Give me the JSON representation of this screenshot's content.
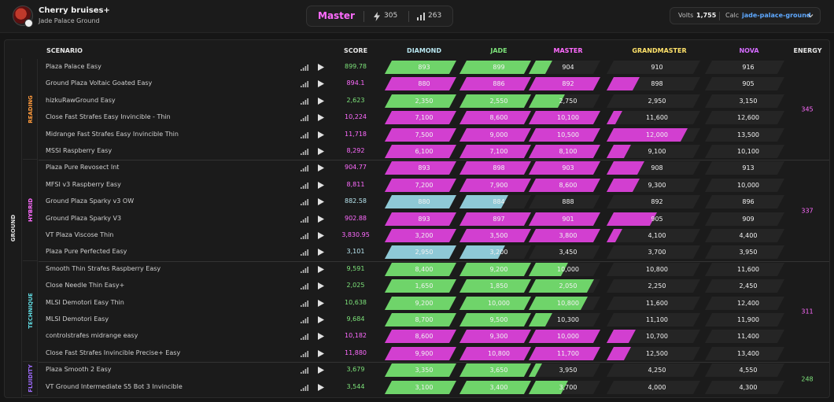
{
  "header": {
    "user_name": "Cherry bruises+",
    "user_sub": "Jade Palace Ground",
    "rank": "Master",
    "energy": "305",
    "count": "263",
    "volts_label": "Volts",
    "volts_value": "1,755",
    "calc_label": "Calc",
    "calc_value": "jade-palace-ground"
  },
  "columns": {
    "scenario": "SCENARIO",
    "score": "SCORE",
    "diamond": "DIAMOND",
    "jade": "JADE",
    "master": "MASTER",
    "grandmaster": "GRANDMASTER",
    "nova": "NOVA",
    "energy": "ENERGY"
  },
  "colors": {
    "diamond": "#b8e6f0",
    "jade": "#7de37a",
    "master": "#ff6bff",
    "grandmaster": "#ffe26a",
    "nova": "#d56cff",
    "bar_green": "#6fd46a",
    "bar_magenta": "#d23fd0",
    "bar_blue": "#8ec9d6"
  },
  "outer_category": "GROUND",
  "groups": [
    {
      "label": "READING",
      "color": "#ff9a3c",
      "energy": "345",
      "energy_color": "#ff6bff",
      "rows": [
        {
          "name": "Plaza Palace Easy",
          "score": "899.78",
          "score_color": "#7de37a",
          "thresholds": [
            "893",
            "899",
            "904",
            "910",
            "916"
          ],
          "bar_color": "green",
          "progress": 2.25
        },
        {
          "name": "Ground Plaza Voltaic Goated Easy",
          "score": "894.1",
          "score_color": "#ff6bff",
          "thresholds": [
            "880",
            "886",
            "892",
            "898",
            "905"
          ],
          "bar_color": "magenta",
          "progress": 3.3
        },
        {
          "name": "hizkuRawGround Easy",
          "score": "2,623",
          "score_color": "#7de37a",
          "thresholds": [
            "2,350",
            "2,550",
            "2,750",
            "2,950",
            "3,150"
          ],
          "bar_color": "green",
          "progress": 2.45
        },
        {
          "name": "Close Fast Strafes Easy Invincible - Thin",
          "score": "10,224",
          "score_color": "#ff6bff",
          "thresholds": [
            "7,100",
            "8,600",
            "10,100",
            "11,600",
            "12,600"
          ],
          "bar_color": "magenta",
          "progress": 3.1
        },
        {
          "name": "Midrange Fast Strafes Easy Invincible Thin",
          "score": "11,718",
          "score_color": "#ff6bff",
          "thresholds": [
            "7,500",
            "9,000",
            "10,500",
            "12,000",
            "13,500"
          ],
          "bar_color": "magenta",
          "progress": 3.85
        },
        {
          "name": "MSSI Raspberry Easy",
          "score": "8,292",
          "score_color": "#ff6bff",
          "thresholds": [
            "6,100",
            "7,100",
            "8,100",
            "9,100",
            "10,100"
          ],
          "bar_color": "magenta",
          "progress": 3.2
        }
      ]
    },
    {
      "label": "HYBRID",
      "color": "#ff6bff",
      "energy": "337",
      "energy_color": "#ff6bff",
      "rows": [
        {
          "name": "Plaza Pure Revosect Int",
          "score": "904.77",
          "score_color": "#ff6bff",
          "thresholds": [
            "893",
            "898",
            "903",
            "908",
            "913"
          ],
          "bar_color": "magenta",
          "progress": 3.35
        },
        {
          "name": "MFSI v3 Raspberry Easy",
          "score": "8,811",
          "score_color": "#ff6bff",
          "thresholds": [
            "7,200",
            "7,900",
            "8,600",
            "9,300",
            "10,000"
          ],
          "bar_color": "magenta",
          "progress": 3.3
        },
        {
          "name": "Ground Plaza Sparky v3 OW",
          "score": "882.58",
          "score_color": "#b8e6f0",
          "thresholds": [
            "880",
            "884",
            "888",
            "892",
            "896"
          ],
          "bar_color": "blue",
          "progress": 1.65
        },
        {
          "name": "Ground Plaza Sparky V3",
          "score": "902.88",
          "score_color": "#ff6bff",
          "thresholds": [
            "893",
            "897",
            "901",
            "905",
            "909"
          ],
          "bar_color": "magenta",
          "progress": 3.5
        },
        {
          "name": "VT Plaza Viscose Thin",
          "score": "3,830.95",
          "score_color": "#ff6bff",
          "thresholds": [
            "3,200",
            "3,500",
            "3,800",
            "4,100",
            "4,400"
          ],
          "bar_color": "magenta",
          "progress": 3.1
        },
        {
          "name": "Plaza Pure Perfected Easy",
          "score": "3,101",
          "score_color": "#b8e6f0",
          "thresholds": [
            "2,950",
            "3,200",
            "3,450",
            "3,700",
            "3,950"
          ],
          "bar_color": "blue",
          "progress": 1.6
        }
      ]
    },
    {
      "label": "TECHNIQUE",
      "color": "#5fd9e0",
      "energy": "311",
      "energy_color": "#ff6bff",
      "rows": [
        {
          "name": "Smooth Thin Strafes Raspberry Easy",
          "score": "9,591",
          "score_color": "#7de37a",
          "thresholds": [
            "8,400",
            "9,200",
            "10,000",
            "10,800",
            "11,600"
          ],
          "bar_color": "green",
          "progress": 2.5
        },
        {
          "name": "Close Needle Thin Easy+",
          "score": "2,025",
          "score_color": "#7de37a",
          "thresholds": [
            "1,650",
            "1,850",
            "2,050",
            "2,250",
            "2,450"
          ],
          "bar_color": "green",
          "progress": 2.9
        },
        {
          "name": "MLSI Demotori Easy Thin",
          "score": "10,638",
          "score_color": "#7de37a",
          "thresholds": [
            "9,200",
            "10,000",
            "10,800",
            "11,600",
            "12,400"
          ],
          "bar_color": "green",
          "progress": 2.8
        },
        {
          "name": "MLSI Demotori Easy",
          "score": "9,684",
          "score_color": "#7de37a",
          "thresholds": [
            "8,700",
            "9,500",
            "10,300",
            "11,100",
            "11,900"
          ],
          "bar_color": "green",
          "progress": 2.25
        },
        {
          "name": "controlstrafes midrange easy",
          "score": "10,182",
          "score_color": "#ff6bff",
          "thresholds": [
            "8,600",
            "9,300",
            "10,000",
            "10,700",
            "11,400"
          ],
          "bar_color": "magenta",
          "progress": 3.25
        },
        {
          "name": "Close Fast Strafes Invincible Precise+ Easy",
          "score": "11,880",
          "score_color": "#ff6bff",
          "thresholds": [
            "9,900",
            "10,800",
            "11,700",
            "12,500",
            "13,400"
          ],
          "bar_color": "magenta",
          "progress": 3.2
        }
      ]
    },
    {
      "label": "FLUIDITY",
      "color": "#a06bff",
      "energy": "248",
      "energy_color": "#7de37a",
      "rows": [
        {
          "name": "Plaza Smooth 2 Easy",
          "score": "3,679",
          "score_color": "#7de37a",
          "thresholds": [
            "3,350",
            "3,650",
            "3,950",
            "4,250",
            "4,550"
          ],
          "bar_color": "green",
          "progress": 2.1
        },
        {
          "name": "VT Ground Intermediate S5 Bot 3 Invincible",
          "score": "3,544",
          "score_color": "#7de37a",
          "thresholds": [
            "3,100",
            "3,400",
            "3,700",
            "4,000",
            "4,300"
          ],
          "bar_color": "green",
          "progress": 2.5
        }
      ]
    }
  ]
}
